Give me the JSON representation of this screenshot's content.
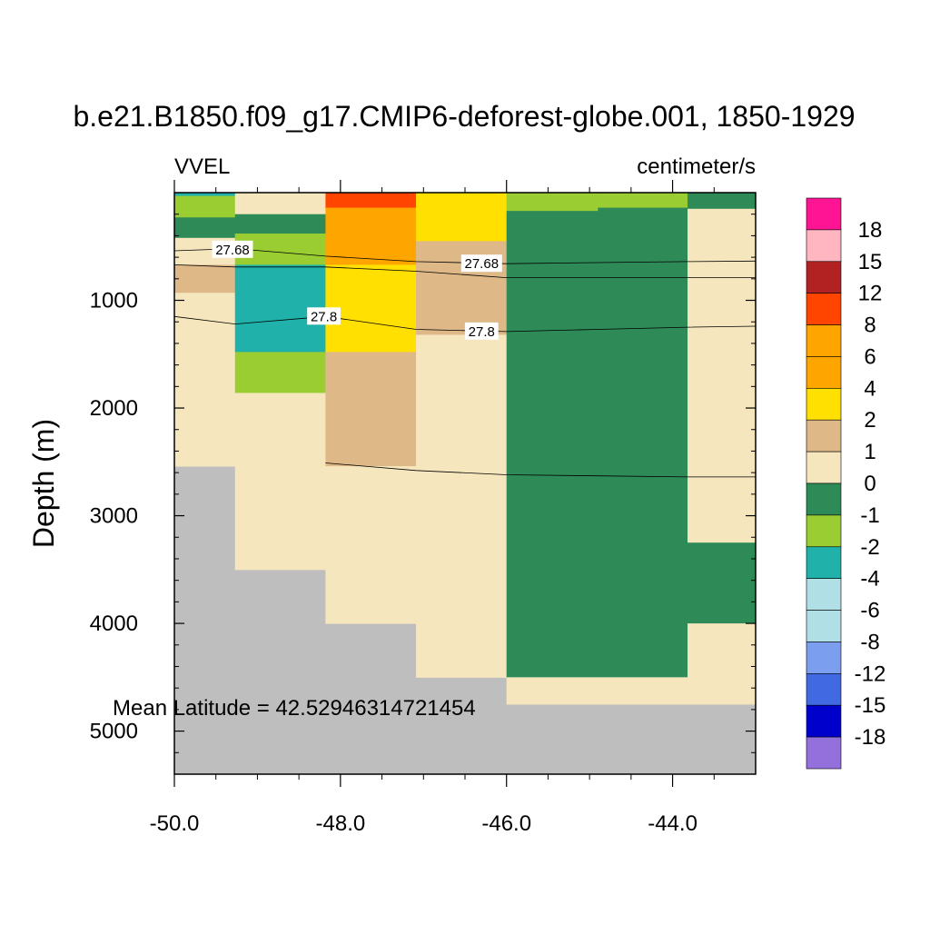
{
  "chart_data": {
    "type": "heatmap",
    "title": "b.e21.B1850.f09_g17.CMIP6-deforest-globe.001, 1850-1929",
    "left_string": "VVEL",
    "right_string": "centimeter/s",
    "xlabel": "",
    "ylabel": "Depth (m)",
    "annotation": "Mean Latitude = 42.52946314721454",
    "xlim": [
      -50.0,
      -43.0
    ],
    "ylim": [
      5400,
      0
    ],
    "x_ticks": [
      -50.0,
      -48.0,
      -46.0,
      -44.0
    ],
    "x_tick_labels": [
      "-50.0",
      "-48.0",
      "-46.0",
      "-44.0"
    ],
    "y_ticks": [
      1000,
      2000,
      3000,
      4000,
      5000
    ],
    "y_tick_labels": [
      "1000",
      "2000",
      "3000",
      "4000",
      "5000"
    ],
    "missing_color": "#BEBEBE",
    "colorbar": {
      "labels": [
        "18",
        "15",
        "12",
        "8",
        "6",
        "4",
        "2",
        "1",
        "0",
        "-1",
        "-2",
        "-4",
        "-6",
        "-8",
        "-12",
        "-15",
        "-18"
      ],
      "colors": [
        "#FF1493",
        "#FFB6C1",
        "#B22222",
        "#FF4500",
        "#FFA500",
        "#FFA500",
        "#FFE000",
        "#DEB887",
        "#F5E6BE",
        "#2E8B57",
        "#9ACD32",
        "#20B2AA",
        "#B0E0E6",
        "#B0E0E6",
        "#7B9FEE",
        "#4169E1",
        "#0000CD",
        "#9370DB"
      ]
    },
    "cells": [
      {
        "x0": -50.0,
        "x1": -49.27,
        "y0": 0,
        "y1": 30,
        "v": -3
      },
      {
        "x0": -50.0,
        "x1": -49.27,
        "y0": 30,
        "y1": 230,
        "v": -1.5
      },
      {
        "x0": -50.0,
        "x1": -49.27,
        "y0": 230,
        "y1": 420,
        "v": -0.5
      },
      {
        "x0": -50.0,
        "x1": -49.27,
        "y0": 420,
        "y1": 670,
        "v": 0.5
      },
      {
        "x0": -50.0,
        "x1": -49.27,
        "y0": 670,
        "y1": 930,
        "v": 1.5
      },
      {
        "x0": -50.0,
        "x1": -49.27,
        "y0": 930,
        "y1": 2540,
        "v": 0.5
      },
      {
        "x0": -49.27,
        "x1": -48.18,
        "y0": 0,
        "y1": 200,
        "v": 0.5
      },
      {
        "x0": -49.27,
        "x1": -48.18,
        "y0": 200,
        "y1": 380,
        "v": -0.5
      },
      {
        "x0": -49.27,
        "x1": -48.18,
        "y0": 380,
        "y1": 670,
        "v": -1.5
      },
      {
        "x0": -49.27,
        "x1": -48.18,
        "y0": 670,
        "y1": 1480,
        "v": -3
      },
      {
        "x0": -49.27,
        "x1": -48.18,
        "y0": 1480,
        "y1": 1860,
        "v": -1.5
      },
      {
        "x0": -49.27,
        "x1": -48.18,
        "y0": 1860,
        "y1": 3500,
        "v": 0.5
      },
      {
        "x0": -48.18,
        "x1": -47.09,
        "y0": 0,
        "y1": 140,
        "v": 10
      },
      {
        "x0": -48.18,
        "x1": -47.09,
        "y0": 140,
        "y1": 670,
        "v": 7
      },
      {
        "x0": -48.18,
        "x1": -47.09,
        "y0": 670,
        "y1": 1480,
        "v": 3
      },
      {
        "x0": -48.18,
        "x1": -47.09,
        "y0": 1480,
        "y1": 2540,
        "v": 1.5
      },
      {
        "x0": -48.18,
        "x1": -47.09,
        "y0": 2540,
        "y1": 4000,
        "v": 0.5
      },
      {
        "x0": -47.09,
        "x1": -46.0,
        "y0": 0,
        "y1": 450,
        "v": 3
      },
      {
        "x0": -47.09,
        "x1": -46.0,
        "y0": 450,
        "y1": 1320,
        "v": 1.5
      },
      {
        "x0": -47.09,
        "x1": -46.0,
        "y0": 1320,
        "y1": 4500,
        "v": 0.5
      },
      {
        "x0": -46.0,
        "x1": -44.9,
        "y0": 0,
        "y1": 170,
        "v": -1.5
      },
      {
        "x0": -46.0,
        "x1": -44.9,
        "y0": 170,
        "y1": 4500,
        "v": -0.5
      },
      {
        "x0": -44.9,
        "x1": -43.82,
        "y0": 0,
        "y1": 140,
        "v": -1.5
      },
      {
        "x0": -44.9,
        "x1": -43.82,
        "y0": 140,
        "y1": 4500,
        "v": -0.5
      },
      {
        "x0": -46.0,
        "x1": -43.82,
        "y0": 4500,
        "y1": 4750,
        "v": 0.5
      },
      {
        "x0": -43.82,
        "x1": -43.0,
        "y0": 0,
        "y1": 150,
        "v": -0.5
      },
      {
        "x0": -43.82,
        "x1": -43.0,
        "y0": 150,
        "y1": 3250,
        "v": 0.5
      },
      {
        "x0": -43.82,
        "x1": -43.0,
        "y0": 3250,
        "y1": 4000,
        "v": -0.5
      },
      {
        "x0": -43.82,
        "x1": -43.0,
        "y0": 4000,
        "y1": 4750,
        "v": 0.5
      }
    ],
    "contours": [
      {
        "label": "27.68",
        "points": [
          [
            -50.0,
            540
          ],
          [
            -49.27,
            520
          ],
          [
            -48.18,
            590
          ],
          [
            -47.09,
            640
          ],
          [
            -46.0,
            660
          ],
          [
            -44.9,
            650
          ],
          [
            -43.82,
            640
          ],
          [
            -43.0,
            635
          ]
        ],
        "label_at": [
          [
            -49.3,
            530
          ],
          [
            -46.3,
            660
          ]
        ]
      },
      {
        "points": [
          [
            -50.0,
            670
          ],
          [
            -49.27,
            690
          ],
          [
            -48.18,
            690
          ],
          [
            -47.09,
            730
          ],
          [
            -46.0,
            790
          ],
          [
            -44.9,
            790
          ],
          [
            -43.82,
            790
          ],
          [
            -43.0,
            790
          ]
        ]
      },
      {
        "label": "27.8",
        "points": [
          [
            -50.0,
            1150
          ],
          [
            -49.27,
            1220
          ],
          [
            -48.18,
            1150
          ],
          [
            -47.09,
            1270
          ],
          [
            -46.0,
            1290
          ],
          [
            -44.9,
            1270
          ],
          [
            -43.82,
            1250
          ],
          [
            -43.0,
            1240
          ]
        ],
        "label_at": [
          [
            -48.2,
            1150
          ],
          [
            -46.3,
            1290
          ]
        ]
      },
      {
        "points": [
          [
            -48.18,
            2510
          ],
          [
            -47.09,
            2580
          ],
          [
            -46.0,
            2620
          ],
          [
            -44.9,
            2630
          ],
          [
            -43.82,
            2640
          ],
          [
            -43.0,
            2640
          ]
        ]
      }
    ]
  }
}
